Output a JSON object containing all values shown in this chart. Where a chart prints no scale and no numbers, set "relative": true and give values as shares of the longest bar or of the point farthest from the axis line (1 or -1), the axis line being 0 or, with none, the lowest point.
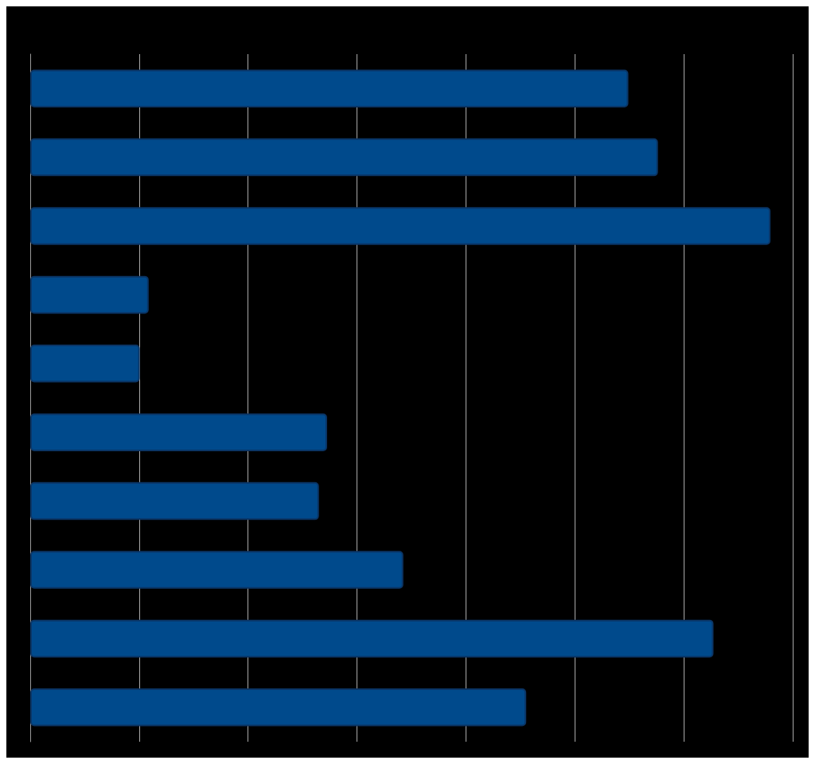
{
  "chart_data": {
    "type": "bar",
    "orientation": "horizontal",
    "relative": true,
    "categories": [
      null,
      null,
      null,
      null,
      null,
      null,
      null,
      null,
      null,
      null
    ],
    "series": [
      {
        "color": "#004a8c",
        "values": [
          0.808,
          0.848,
          1,
          0.16,
          0.148,
          0.401,
          0.39,
          0.504,
          0.923,
          0.67
        ]
      }
    ],
    "grid": "x"
  }
}
